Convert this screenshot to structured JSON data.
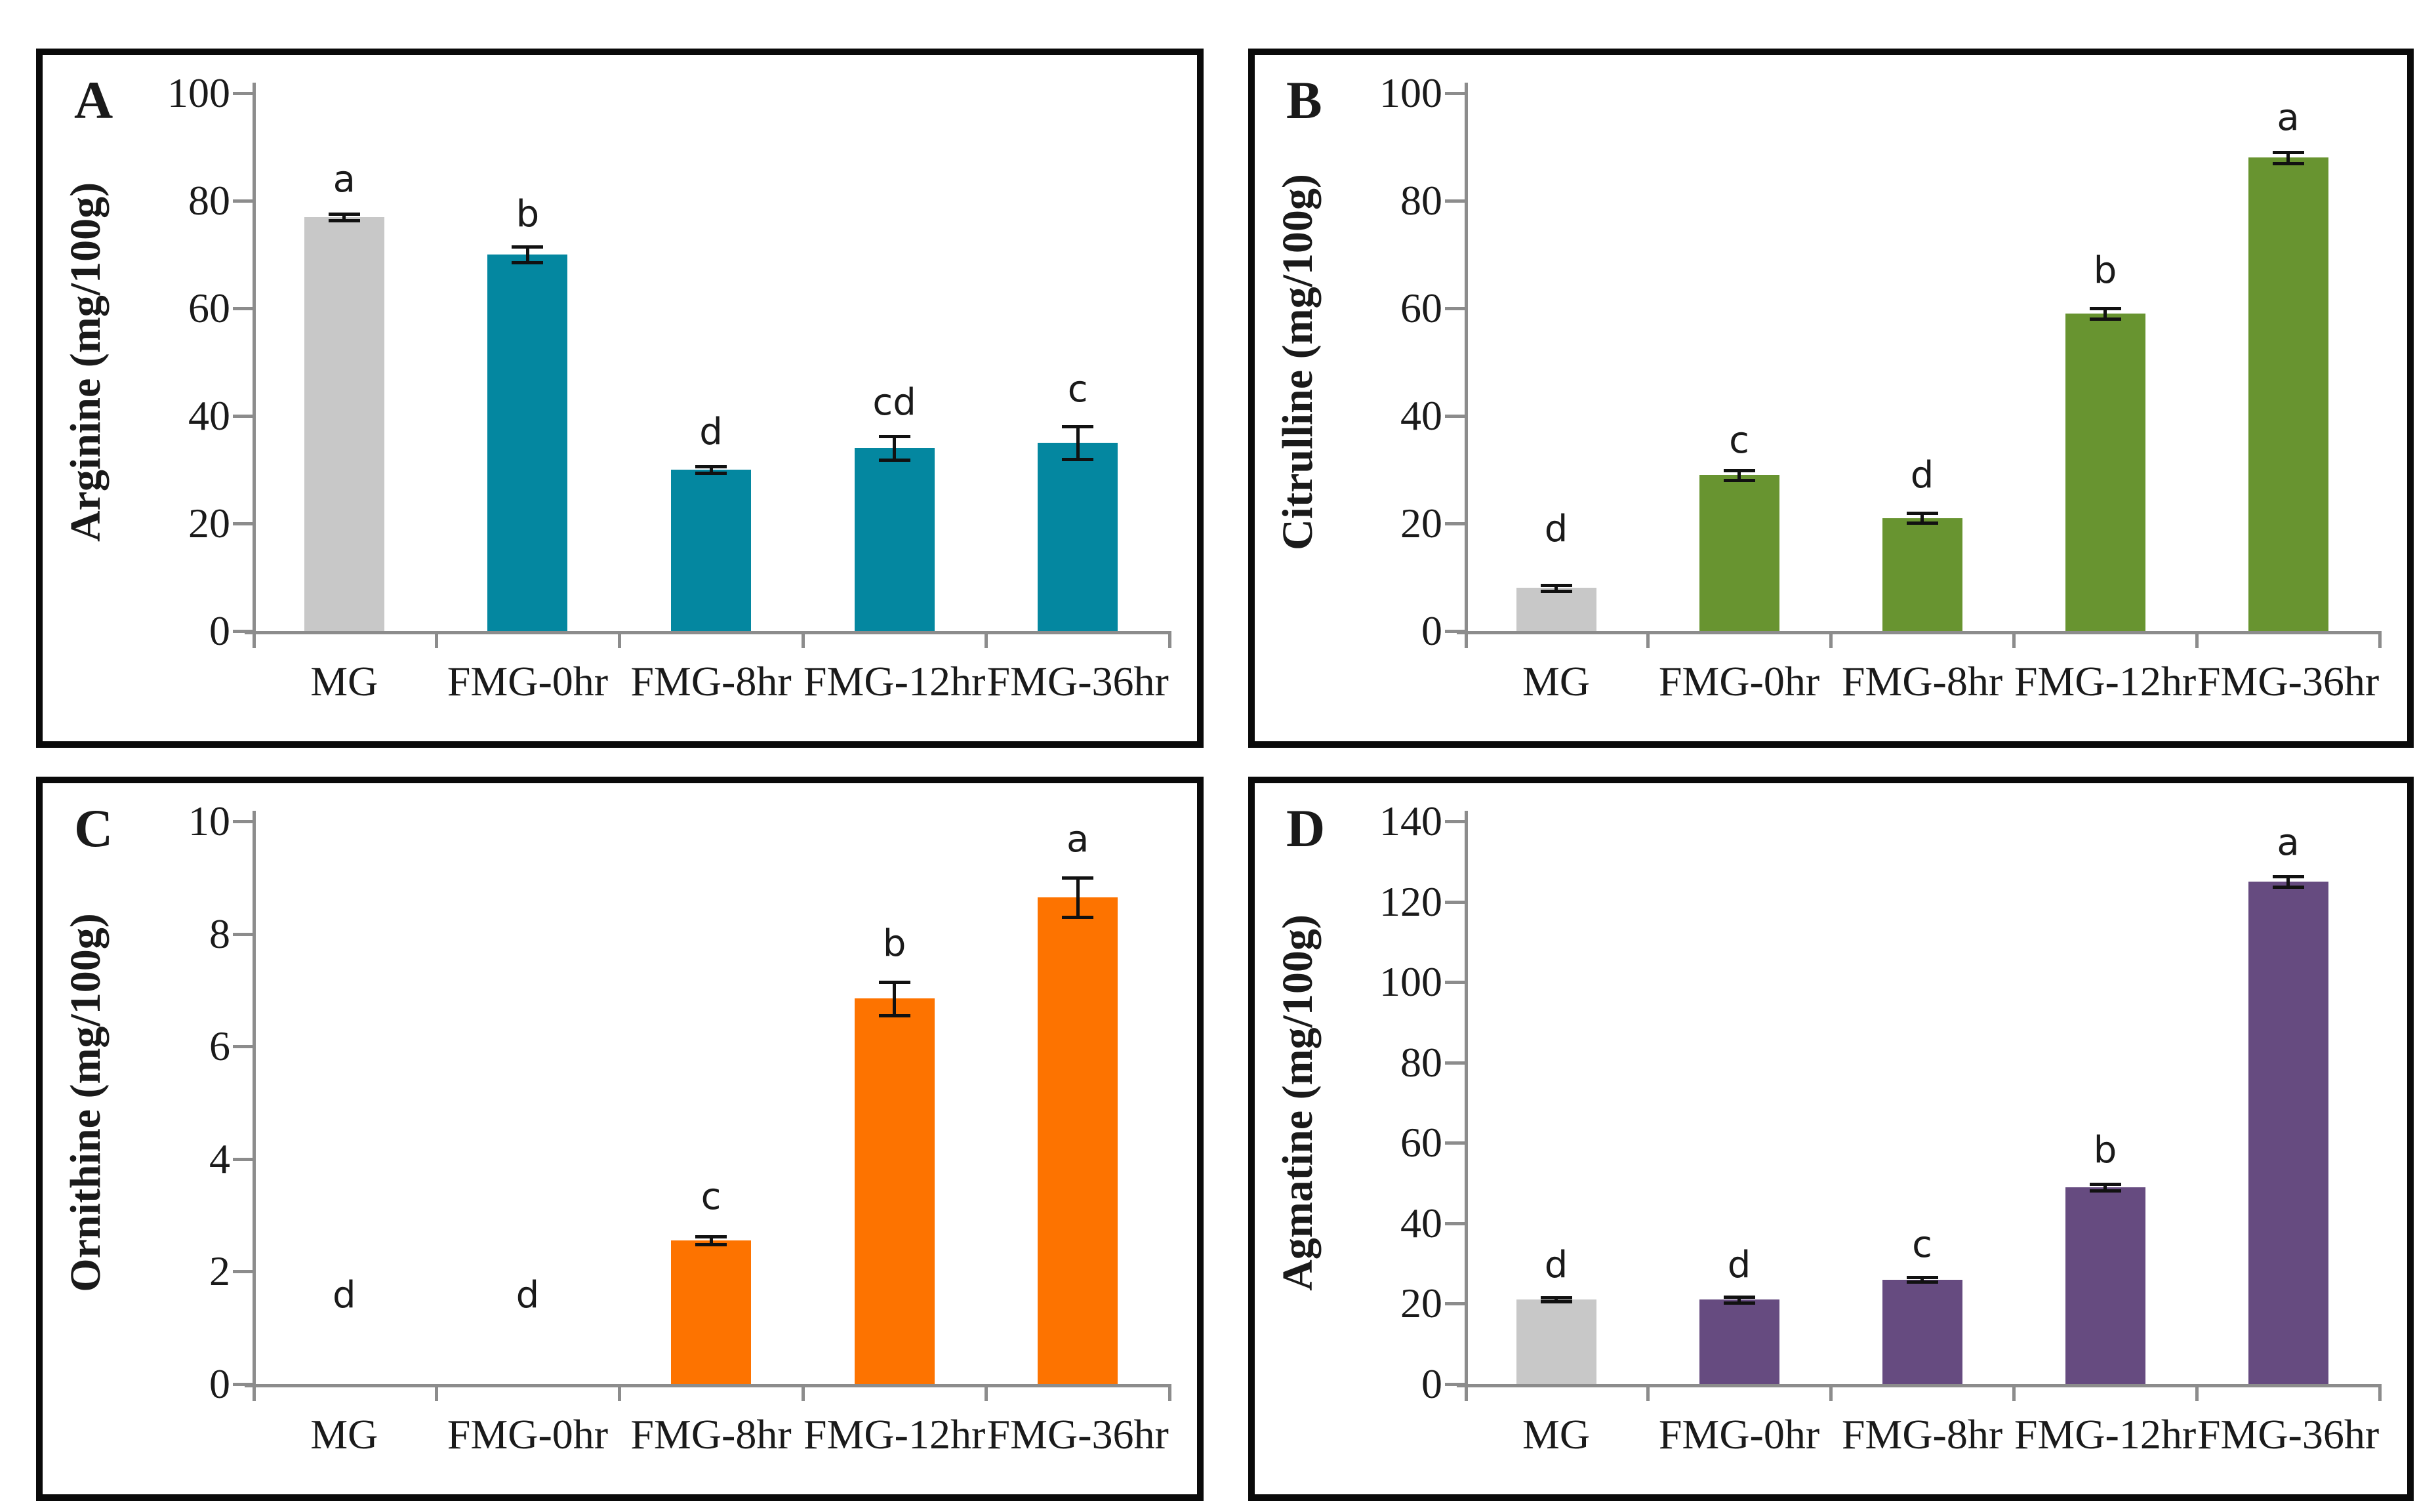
{
  "figure": {
    "background": "#ffffff",
    "panel_border_color": "#0a0a0a",
    "axis_color": "#8c8c8c",
    "text_color": "#1a1a1a",
    "error_bar_color": "#111111",
    "control_bar_color": "#c8c8c8"
  },
  "categories": [
    "MG",
    "FMG-0hr",
    "FMG-8hr",
    "FMG-12hr",
    "FMG-36hr"
  ],
  "chart_data": [
    {
      "type": "bar",
      "panel_label": "A",
      "title": "",
      "xlabel": "",
      "ylabel": "Arginine (mg/100g)",
      "ylim": [
        0,
        100
      ],
      "yticks": [
        0,
        20,
        40,
        60,
        80,
        100
      ],
      "grid": false,
      "legend": "none",
      "categories": [
        "MG",
        "FMG-0hr",
        "FMG-8hr",
        "FMG-12hr",
        "FMG-36hr"
      ],
      "values": [
        77,
        70,
        30,
        34,
        35
      ],
      "errors": [
        0.6,
        1.5,
        0.6,
        2.2,
        3.0
      ],
      "sig_letters": [
        "a",
        "b",
        "d",
        "cd",
        "c"
      ],
      "letter_y": [
        80.5,
        74.0,
        33.5,
        39.0,
        41.5
      ],
      "bar_color": "#0487a0",
      "first_bar_color": "#c8c8c8"
    },
    {
      "type": "bar",
      "panel_label": "B",
      "title": "",
      "xlabel": "",
      "ylabel": "Citrulline (mg/100g)",
      "ylim": [
        0,
        100
      ],
      "yticks": [
        0,
        20,
        40,
        60,
        80,
        100
      ],
      "grid": false,
      "legend": "none",
      "categories": [
        "MG",
        "FMG-0hr",
        "FMG-8hr",
        "FMG-12hr",
        "FMG-36hr"
      ],
      "values": [
        8,
        29,
        21,
        59,
        88
      ],
      "errors": [
        0.5,
        0.9,
        0.9,
        1.0,
        1.0
      ],
      "sig_letters": [
        "d",
        "c",
        "d",
        "b",
        "a"
      ],
      "letter_y": [
        15.5,
        32.0,
        25.5,
        63.5,
        92.0
      ],
      "bar_color": "#689430",
      "first_bar_color": "#c8c8c8"
    },
    {
      "type": "bar",
      "panel_label": "C",
      "title": "",
      "xlabel": "",
      "ylabel": "Ornithine (mg/100g)",
      "ylim": [
        0,
        10
      ],
      "yticks": [
        0,
        2,
        4,
        6,
        8,
        10
      ],
      "grid": false,
      "legend": "none",
      "categories": [
        "MG",
        "FMG-0hr",
        "FMG-8hr",
        "FMG-12hr",
        "FMG-36hr"
      ],
      "values": [
        0,
        0,
        2.55,
        6.85,
        8.65
      ],
      "errors": [
        0,
        0,
        0.07,
        0.3,
        0.35
      ],
      "sig_letters": [
        "d",
        "d",
        "c",
        "b",
        "a"
      ],
      "letter_y": [
        1.25,
        1.25,
        3.0,
        7.5,
        9.35
      ],
      "bar_color": "#fd7300",
      "first_bar_color": "#c8c8c8"
    },
    {
      "type": "bar",
      "panel_label": "D",
      "title": "",
      "xlabel": "",
      "ylabel": "Agmatine (mg/100g)",
      "ylim": [
        0,
        140
      ],
      "yticks": [
        0,
        20,
        40,
        60,
        80,
        100,
        120,
        140
      ],
      "grid": false,
      "legend": "none",
      "categories": [
        "MG",
        "FMG-0hr",
        "FMG-8hr",
        "FMG-12hr",
        "FMG-36hr"
      ],
      "values": [
        21,
        21,
        26,
        49,
        125
      ],
      "errors": [
        0.5,
        0.7,
        0.6,
        0.8,
        1.3
      ],
      "sig_letters": [
        "d",
        "d",
        "c",
        "b",
        "a"
      ],
      "letter_y": [
        25.0,
        25.0,
        30.0,
        53.5,
        130.0
      ],
      "bar_color": "#664b80",
      "first_bar_color": "#c8c8c8"
    }
  ]
}
